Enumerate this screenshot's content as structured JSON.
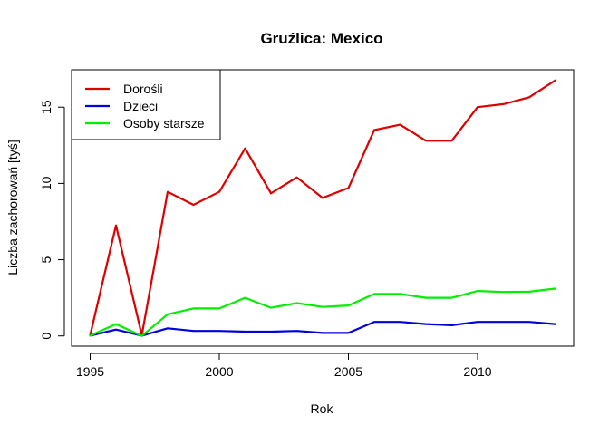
{
  "chart_data": {
    "type": "line",
    "title": "Gruźlica: Mexico",
    "xlabel": "Rok",
    "ylabel": "Liczba zachorowań [tyś]",
    "x": [
      1995,
      1996,
      1997,
      1998,
      1999,
      2000,
      2001,
      2002,
      2003,
      2004,
      2005,
      2006,
      2007,
      2008,
      2009,
      2010,
      2011,
      2012,
      2013
    ],
    "xlim": [
      1994.28,
      2013.72
    ],
    "ylim": [
      -0.67,
      17.45
    ],
    "xticks": [
      1995,
      2000,
      2005,
      2010
    ],
    "yticks": [
      0,
      5,
      10,
      15
    ],
    "legend_position": "top-left",
    "grid": false,
    "series": [
      {
        "name": "Dorośli",
        "color": "#dd0000",
        "values": [
          0.05,
          7.25,
          0.05,
          9.45,
          8.6,
          9.45,
          12.3,
          9.35,
          10.4,
          9.05,
          9.7,
          13.5,
          13.85,
          12.8,
          12.8,
          15.0,
          15.2,
          15.65,
          16.75
        ]
      },
      {
        "name": "Dzieci",
        "color": "#0000dd",
        "values": [
          0.02,
          0.42,
          0.02,
          0.5,
          0.33,
          0.33,
          0.28,
          0.28,
          0.33,
          0.2,
          0.2,
          0.92,
          0.92,
          0.78,
          0.7,
          0.92,
          0.92,
          0.92,
          0.78
        ]
      },
      {
        "name": "Osoby starsze",
        "color": "#00ee00",
        "values": [
          0.02,
          0.78,
          0.0,
          1.42,
          1.8,
          1.8,
          2.5,
          1.85,
          2.15,
          1.9,
          2.0,
          2.75,
          2.75,
          2.5,
          2.5,
          2.95,
          2.88,
          2.9,
          3.1
        ]
      }
    ]
  }
}
